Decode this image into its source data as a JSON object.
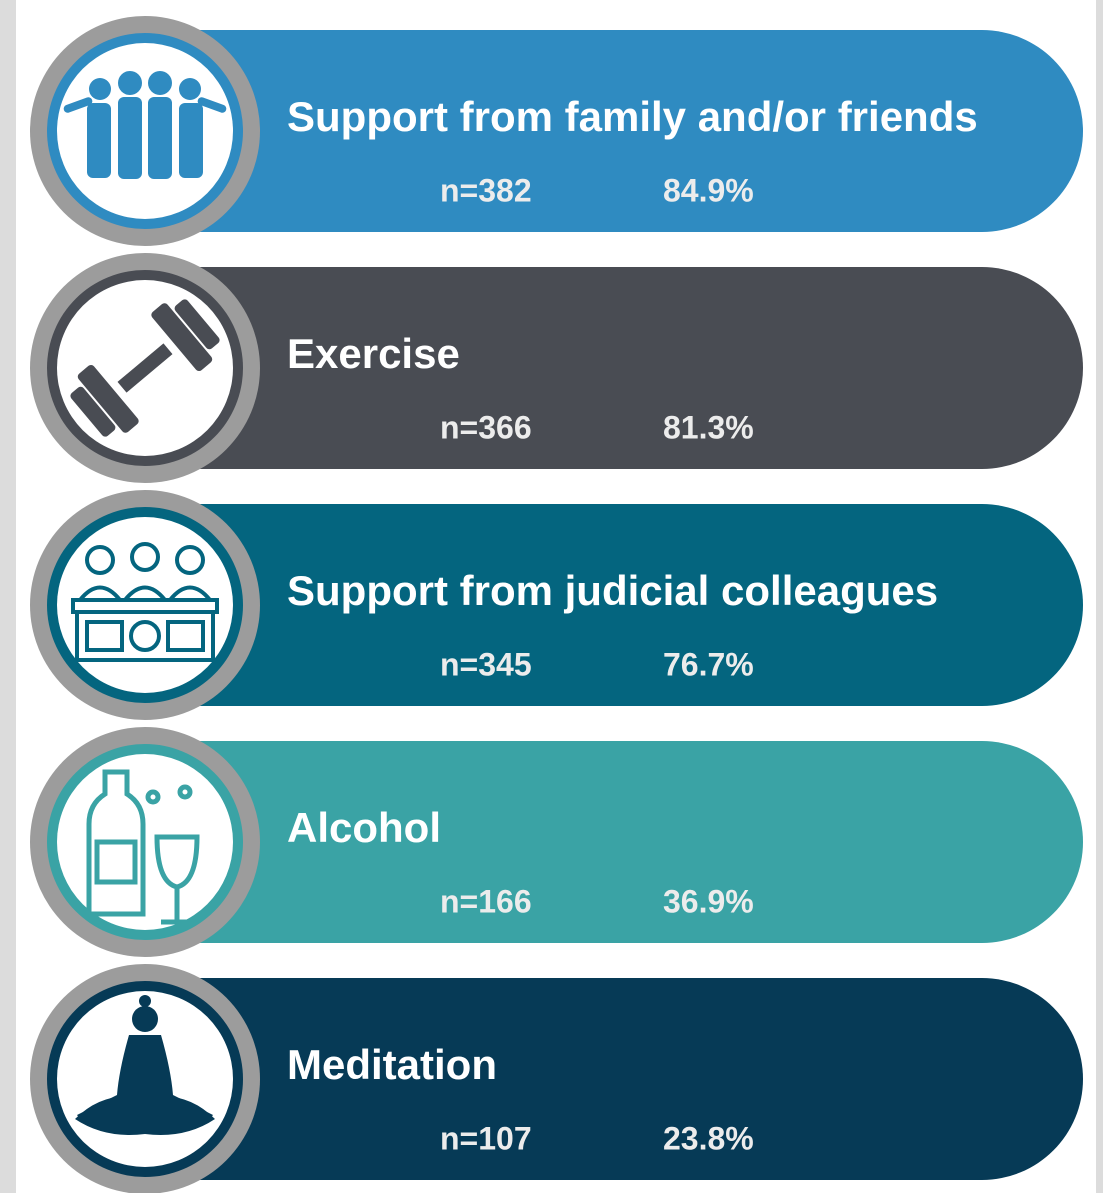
{
  "items": [
    {
      "label": "Support from family and/or friends",
      "count": "n=382",
      "percent": "84.9%",
      "color": "#2f8bc1"
    },
    {
      "label": "Exercise",
      "count": "n=366",
      "percent": "81.3%",
      "color": "#494c53"
    },
    {
      "label": "Support from judicial colleagues",
      "count": "n=345",
      "percent": "76.7%",
      "color": "#04657f"
    },
    {
      "label": "Alcohol",
      "count": "n=166",
      "percent": "36.9%",
      "color": "#3aa3a5"
    },
    {
      "label": "Meditation",
      "count": "n=107",
      "percent": "23.8%",
      "color": "#063a56"
    }
  ]
}
